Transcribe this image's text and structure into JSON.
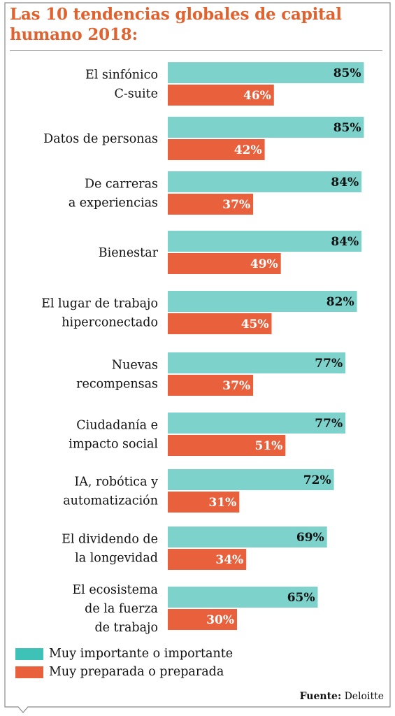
{
  "title": "Las 10 tendencias globales de capital humano 2018:",
  "colors": {
    "important": "#7dd3cb",
    "prepared": "#e8613c",
    "title": "#e0622f"
  },
  "chart_data": {
    "type": "bar",
    "orientation": "horizontal",
    "title": "Las 10 tendencias globales de capital humano 2018:",
    "categories": [
      [
        "El sinfónico",
        "C-suite"
      ],
      [
        "Datos de personas"
      ],
      [
        "De carreras",
        "a experiencias"
      ],
      [
        "Bienestar"
      ],
      [
        "El lugar de trabajo",
        "hiperconectado"
      ],
      [
        "Nuevas",
        "recompensas"
      ],
      [
        "Ciudadanía e",
        "impacto social"
      ],
      [
        "IA, robótica y",
        "automatización"
      ],
      [
        "El dividendo de",
        "la longevidad"
      ],
      [
        "El ecosistema",
        "de la fuerza",
        "de trabajo"
      ]
    ],
    "series": [
      {
        "name": "Muy importante o importante",
        "values": [
          85,
          85,
          84,
          84,
          82,
          77,
          77,
          72,
          69,
          65
        ]
      },
      {
        "name": "Muy preparada o preparada",
        "values": [
          46,
          42,
          37,
          49,
          45,
          37,
          51,
          31,
          34,
          30
        ]
      }
    ],
    "value_suffix": "%",
    "xlim": [
      0,
      100
    ],
    "grid": false,
    "legend_position": "bottom-left"
  },
  "legend": {
    "important": "Muy importante o importante",
    "prepared": "Muy preparada o preparada"
  },
  "source": {
    "label": "Fuente:",
    "value": "Deloitte"
  }
}
